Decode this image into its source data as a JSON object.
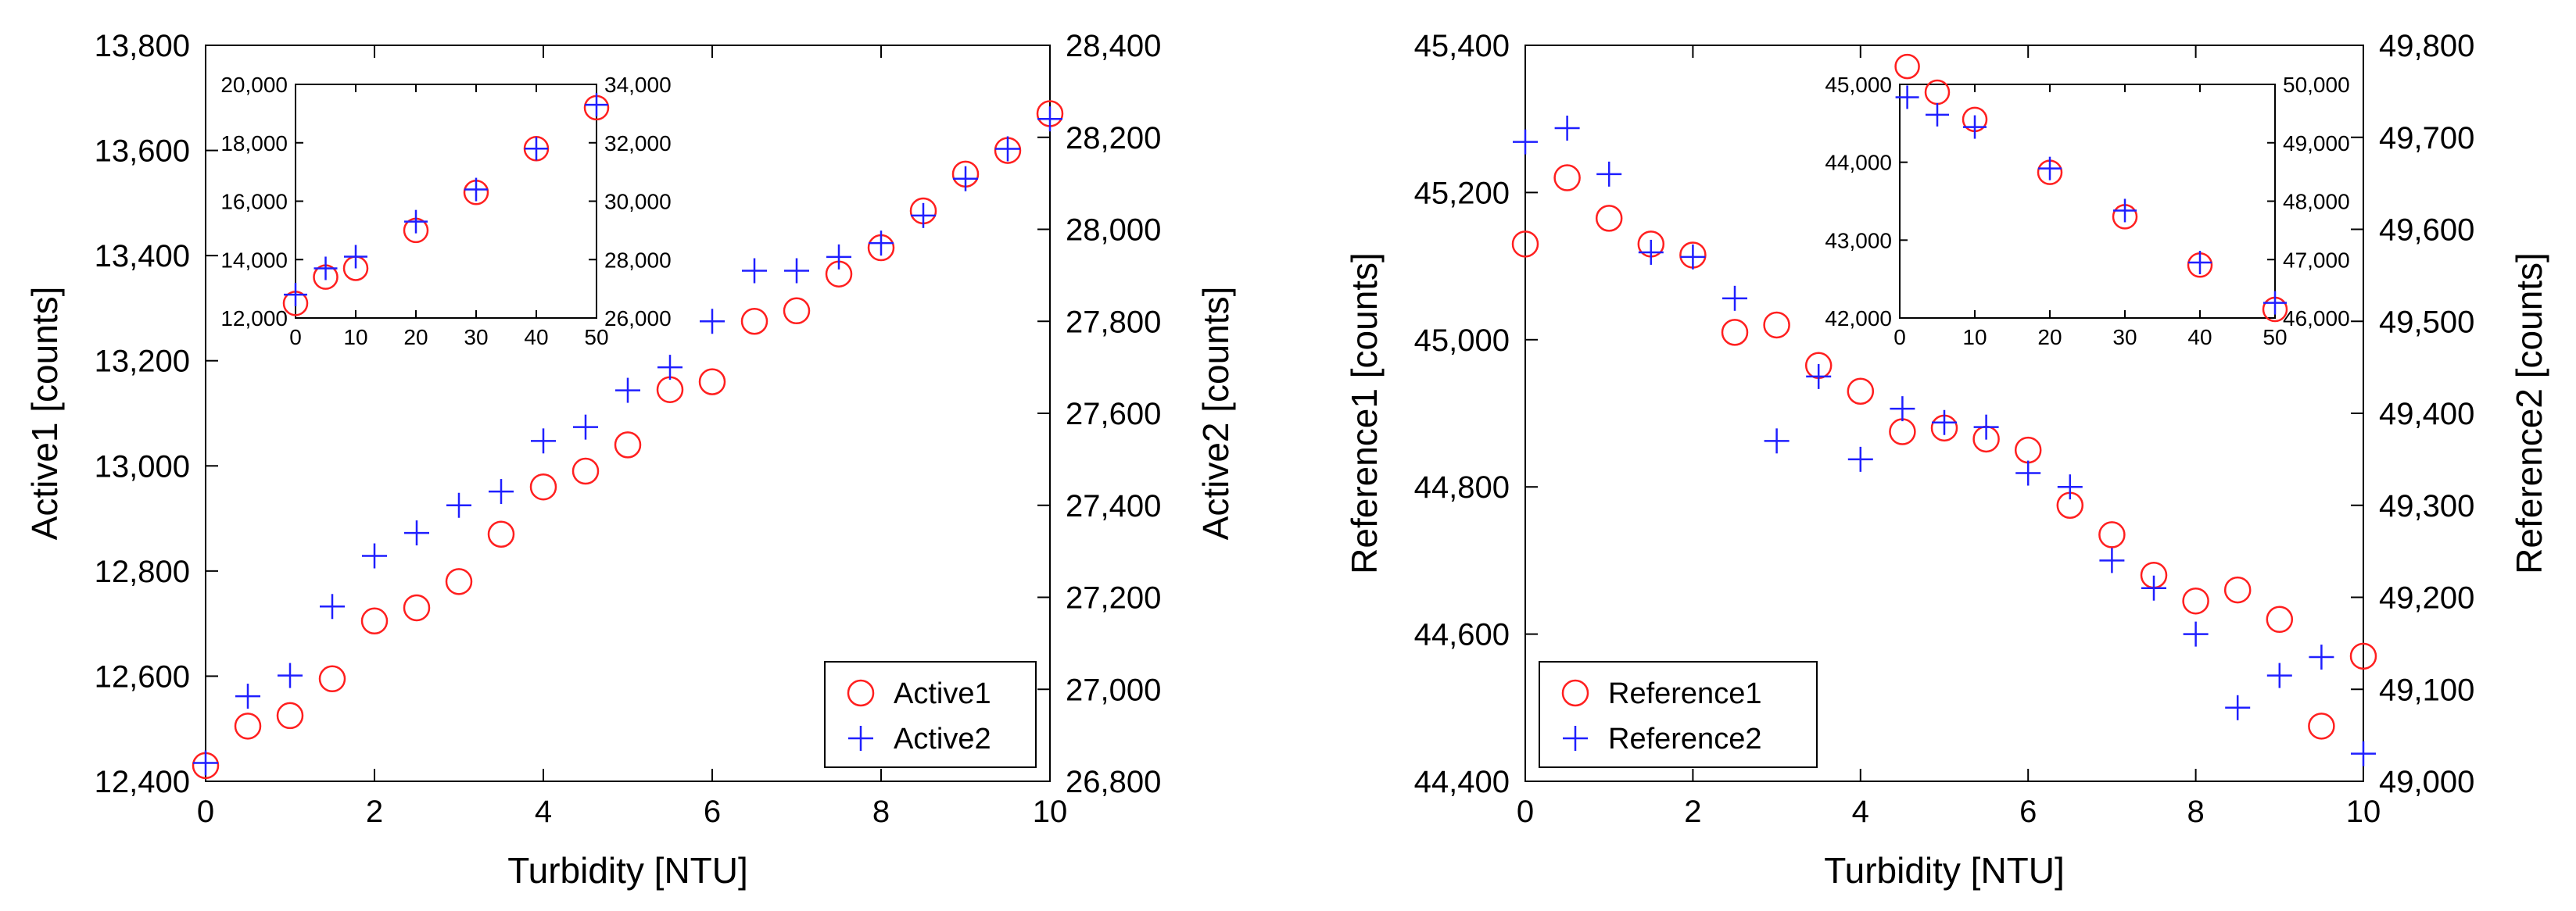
{
  "chart_data": [
    {
      "type": "scatter",
      "xlabel": "Turbidity [NTU]",
      "ylabel_left": "Active1 [counts]",
      "ylabel_right": "Active2 [counts]",
      "xlim": [
        0,
        10
      ],
      "xticks": [
        0,
        2,
        4,
        6,
        8,
        10
      ],
      "ylim_left": [
        12400,
        13800
      ],
      "yticks_left": [
        12400,
        12600,
        12800,
        13000,
        13200,
        13400,
        13600,
        13800
      ],
      "ylim_right": [
        26800,
        28400
      ],
      "yticks_right": [
        26800,
        27000,
        27200,
        27400,
        27600,
        27800,
        28000,
        28200,
        28400
      ],
      "legend_position": "bottom-right",
      "series": [
        {
          "name": "Active1",
          "marker": "circle",
          "color": "#ff1f1f",
          "axis": "left",
          "x": [
            0,
            0.5,
            1,
            1.5,
            2,
            2.5,
            3,
            3.5,
            4,
            4.5,
            5,
            5.5,
            6,
            6.5,
            7,
            7.5,
            8,
            8.5,
            9,
            9.5,
            10
          ],
          "values": [
            12430,
            12505,
            12525,
            12595,
            12705,
            12730,
            12780,
            12870,
            12960,
            12990,
            13040,
            13145,
            13160,
            13275,
            13295,
            13365,
            13415,
            13485,
            13555,
            13600,
            13670
          ]
        },
        {
          "name": "Active2",
          "marker": "plus",
          "color": "#1f1fff",
          "axis": "right",
          "x": [
            0,
            0.5,
            1,
            1.5,
            2,
            2.5,
            3,
            3.5,
            4,
            4.5,
            5,
            5.5,
            6,
            6.5,
            7,
            7.5,
            8,
            8.5,
            9,
            9.5,
            10
          ],
          "values": [
            26840,
            26985,
            27030,
            27180,
            27290,
            27340,
            27400,
            27430,
            27540,
            27570,
            27650,
            27700,
            27800,
            27910,
            27910,
            27940,
            27970,
            28030,
            28110,
            28175,
            28240
          ]
        }
      ],
      "inset": {
        "xlim": [
          0,
          50
        ],
        "xticks": [
          0,
          10,
          20,
          30,
          40,
          50
        ],
        "ylim_left": [
          12000,
          20000
        ],
        "yticks_left": [
          12000,
          14000,
          16000,
          18000,
          20000
        ],
        "ylim_right": [
          26000,
          34000
        ],
        "yticks_right": [
          26000,
          28000,
          30000,
          32000,
          34000
        ],
        "series": [
          {
            "name": "Active1",
            "marker": "circle",
            "color": "#ff1f1f",
            "axis": "left",
            "x": [
              0,
              5,
              10,
              20,
              30,
              40,
              50
            ],
            "values": [
              12500,
              13400,
              13700,
              15000,
              16300,
              17800,
              19200
            ]
          },
          {
            "name": "Active2",
            "marker": "plus",
            "color": "#1f1fff",
            "axis": "right",
            "x": [
              0,
              5,
              10,
              20,
              30,
              40,
              50
            ],
            "values": [
              26800,
              27700,
              28100,
              29300,
              30400,
              31800,
              33300
            ]
          }
        ]
      }
    },
    {
      "type": "scatter",
      "xlabel": "Turbidity [NTU]",
      "ylabel_left": "Reference1 [counts]",
      "ylabel_right": "Reference2 [counts]",
      "xlim": [
        0,
        10
      ],
      "xticks": [
        0,
        2,
        4,
        6,
        8,
        10
      ],
      "ylim_left": [
        44400,
        45400
      ],
      "yticks_left": [
        44400,
        44600,
        44800,
        45000,
        45200,
        45400
      ],
      "ylim_right": [
        49000,
        49800
      ],
      "yticks_right": [
        49000,
        49100,
        49200,
        49300,
        49400,
        49500,
        49600,
        49700,
        49800
      ],
      "legend_position": "bottom-left",
      "series": [
        {
          "name": "Reference1",
          "marker": "circle",
          "color": "#ff1f1f",
          "axis": "left",
          "x": [
            0,
            0.5,
            1,
            1.5,
            2,
            2.5,
            3,
            3.5,
            4,
            4.5,
            5,
            5.5,
            6,
            6.5,
            7,
            7.5,
            8,
            8.5,
            9,
            9.5,
            10
          ],
          "values": [
            45130,
            45220,
            45165,
            45130,
            45115,
            45010,
            45020,
            44965,
            44930,
            44875,
            44880,
            44865,
            44850,
            44775,
            44735,
            44680,
            44645,
            44660,
            44620,
            44475,
            44570
          ]
        },
        {
          "name": "Reference2",
          "marker": "plus",
          "color": "#1f1fff",
          "axis": "right",
          "x": [
            0,
            0.5,
            1,
            1.5,
            2,
            2.5,
            3,
            3.5,
            4,
            4.5,
            5,
            5.5,
            6,
            6.5,
            7,
            7.5,
            8,
            8.5,
            9,
            9.5,
            10
          ],
          "values": [
            49695,
            49710,
            49660,
            49575,
            49570,
            49525,
            49370,
            49440,
            49350,
            49405,
            49390,
            49385,
            49335,
            49320,
            49240,
            49210,
            49160,
            49080,
            49115,
            49135,
            49030
          ]
        }
      ],
      "inset": {
        "xlim": [
          0,
          50
        ],
        "xticks": [
          0,
          10,
          20,
          30,
          40,
          50
        ],
        "ylim_left": [
          42000,
          45000
        ],
        "yticks_left": [
          42000,
          43000,
          44000,
          45000
        ],
        "ylim_right": [
          46000,
          50000
        ],
        "yticks_right": [
          46000,
          47000,
          48000,
          49000,
          50000
        ],
        "series": [
          {
            "name": "Reference1",
            "marker": "circle",
            "color": "#ff1f1f",
            "axis": "left",
            "x": [
              1,
              5,
              10,
              20,
              30,
              40,
              50
            ],
            "values": [
              45230,
              44900,
              44550,
              43870,
              43300,
              42680,
              42110
            ]
          },
          {
            "name": "Reference2",
            "marker": "plus",
            "color": "#1f1fff",
            "axis": "right",
            "x": [
              1,
              5,
              10,
              20,
              30,
              40,
              50
            ],
            "values": [
              49780,
              49480,
              49270,
              48560,
              47840,
              46950,
              46260
            ]
          }
        ]
      }
    }
  ]
}
